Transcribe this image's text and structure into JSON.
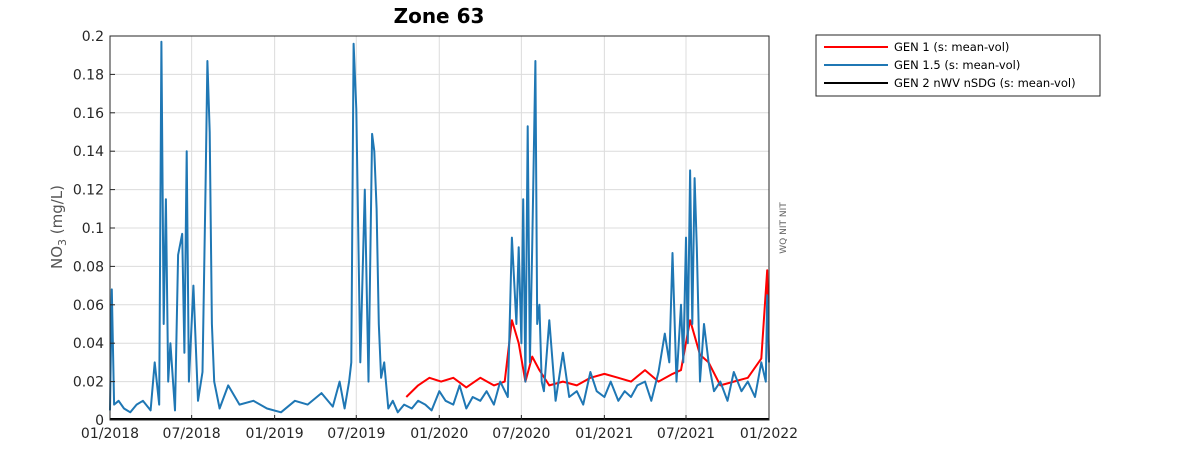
{
  "chart_data": {
    "type": "line",
    "title": "Zone 63",
    "ylabel": "NO3 (mg/L)",
    "ylabel_main": "NO",
    "ylabel_sub": "3",
    "ylabel_unit": " (mg/L)",
    "xlabel": "",
    "side_note": "WQ NIT NIT",
    "ylim": [
      0,
      0.2
    ],
    "xlim": [
      "2018-01-01",
      "2022-01-01"
    ],
    "y_ticks": [
      "0",
      "0.02",
      "0.04",
      "0.06",
      "0.08",
      "0.1",
      "0.12",
      "0.14",
      "0.16",
      "0.18",
      "0.2"
    ],
    "y_tick_values": [
      0,
      0.02,
      0.04,
      0.06,
      0.08,
      0.1,
      0.12,
      0.14,
      0.16,
      0.18,
      0.2
    ],
    "x_ticks": [
      "01/2018",
      "07/2018",
      "01/2019",
      "07/2019",
      "01/2020",
      "07/2020",
      "01/2021",
      "07/2021",
      "01/2022"
    ],
    "x_tick_dates": [
      "2018-01-01",
      "2018-07-01",
      "2019-01-01",
      "2019-07-01",
      "2020-01-01",
      "2020-07-01",
      "2021-01-01",
      "2021-07-01",
      "2022-01-01"
    ],
    "grid": true,
    "legend_position": "outside-top-right",
    "series": [
      {
        "name": "GEN 1 (s: mean-vol)",
        "color": "#ff0000",
        "x": [
          "2019-10-20",
          "2019-11-15",
          "2019-12-10",
          "2020-01-05",
          "2020-02-01",
          "2020-03-01",
          "2020-04-01",
          "2020-05-01",
          "2020-05-25",
          "2020-06-10",
          "2020-06-25",
          "2020-07-10",
          "2020-07-25",
          "2020-08-10",
          "2020-09-01",
          "2020-10-01",
          "2020-11-01",
          "2020-12-01",
          "2021-01-01",
          "2021-02-01",
          "2021-03-01",
          "2021-04-01",
          "2021-05-01",
          "2021-06-01",
          "2021-06-20",
          "2021-07-10",
          "2021-08-01",
          "2021-08-20",
          "2021-09-15",
          "2021-10-15",
          "2021-11-15",
          "2021-12-15",
          "2021-12-28",
          "2022-01-01"
        ],
        "values": [
          0.012,
          0.018,
          0.022,
          0.02,
          0.022,
          0.017,
          0.022,
          0.018,
          0.02,
          0.052,
          0.04,
          0.02,
          0.033,
          0.026,
          0.018,
          0.02,
          0.018,
          0.022,
          0.024,
          0.022,
          0.02,
          0.026,
          0.02,
          0.024,
          0.026,
          0.052,
          0.034,
          0.03,
          0.018,
          0.02,
          0.022,
          0.032,
          0.078,
          0.03
        ]
      },
      {
        "name": "GEN 1.5 (s: mean-vol)",
        "color": "#1f77b4",
        "x": [
          "2018-01-01",
          "2018-01-05",
          "2018-01-10",
          "2018-01-20",
          "2018-02-01",
          "2018-02-15",
          "2018-03-01",
          "2018-03-15",
          "2018-04-01",
          "2018-04-10",
          "2018-04-20",
          "2018-04-25",
          "2018-04-30",
          "2018-05-05",
          "2018-05-10",
          "2018-05-15",
          "2018-05-25",
          "2018-06-01",
          "2018-06-10",
          "2018-06-15",
          "2018-06-20",
          "2018-06-25",
          "2018-07-05",
          "2018-07-15",
          "2018-07-25",
          "2018-08-01",
          "2018-08-05",
          "2018-08-10",
          "2018-08-15",
          "2018-08-20",
          "2018-09-01",
          "2018-09-20",
          "2018-10-15",
          "2018-11-15",
          "2018-12-15",
          "2019-01-15",
          "2019-02-15",
          "2019-03-15",
          "2019-04-15",
          "2019-05-10",
          "2019-05-25",
          "2019-06-05",
          "2019-06-15",
          "2019-06-20",
          "2019-06-25",
          "2019-07-01",
          "2019-07-10",
          "2019-07-20",
          "2019-07-28",
          "2019-08-05",
          "2019-08-10",
          "2019-08-15",
          "2019-08-20",
          "2019-08-25",
          "2019-09-01",
          "2019-09-10",
          "2019-09-20",
          "2019-10-01",
          "2019-10-15",
          "2019-11-01",
          "2019-11-15",
          "2019-12-01",
          "2019-12-15",
          "2020-01-01",
          "2020-01-15",
          "2020-02-01",
          "2020-02-15",
          "2020-03-01",
          "2020-03-15",
          "2020-04-01",
          "2020-04-15",
          "2020-05-01",
          "2020-05-15",
          "2020-06-01",
          "2020-06-10",
          "2020-06-20",
          "2020-06-25",
          "2020-07-01",
          "2020-07-05",
          "2020-07-10",
          "2020-07-15",
          "2020-07-20",
          "2020-07-25",
          "2020-08-01",
          "2020-08-05",
          "2020-08-10",
          "2020-08-15",
          "2020-08-20",
          "2020-09-01",
          "2020-09-15",
          "2020-10-01",
          "2020-10-15",
          "2020-11-01",
          "2020-11-15",
          "2020-12-01",
          "2020-12-15",
          "2021-01-01",
          "2021-01-15",
          "2021-02-01",
          "2021-02-15",
          "2021-03-01",
          "2021-03-15",
          "2021-04-01",
          "2021-04-15",
          "2021-05-01",
          "2021-05-15",
          "2021-05-25",
          "2021-06-01",
          "2021-06-10",
          "2021-06-20",
          "2021-06-25",
          "2021-07-01",
          "2021-07-05",
          "2021-07-10",
          "2021-07-15",
          "2021-07-20",
          "2021-07-25",
          "2021-08-01",
          "2021-08-10",
          "2021-08-20",
          "2021-09-01",
          "2021-09-15",
          "2021-10-01",
          "2021-10-15",
          "2021-11-01",
          "2021-11-15",
          "2021-12-01",
          "2021-12-15",
          "2021-12-25",
          "2021-12-28",
          "2022-01-01"
        ],
        "values": [
          0.005,
          0.068,
          0.008,
          0.01,
          0.006,
          0.004,
          0.008,
          0.01,
          0.005,
          0.03,
          0.008,
          0.197,
          0.05,
          0.115,
          0.02,
          0.04,
          0.005,
          0.086,
          0.097,
          0.035,
          0.14,
          0.02,
          0.07,
          0.01,
          0.025,
          0.123,
          0.187,
          0.15,
          0.05,
          0.02,
          0.006,
          0.018,
          0.008,
          0.01,
          0.006,
          0.004,
          0.01,
          0.008,
          0.014,
          0.007,
          0.02,
          0.006,
          0.02,
          0.03,
          0.196,
          0.162,
          0.03,
          0.12,
          0.02,
          0.149,
          0.14,
          0.11,
          0.05,
          0.022,
          0.03,
          0.006,
          0.01,
          0.004,
          0.008,
          0.006,
          0.01,
          0.008,
          0.005,
          0.015,
          0.01,
          0.008,
          0.018,
          0.006,
          0.012,
          0.01,
          0.015,
          0.008,
          0.02,
          0.012,
          0.095,
          0.05,
          0.09,
          0.04,
          0.115,
          0.02,
          0.153,
          0.03,
          0.09,
          0.187,
          0.05,
          0.06,
          0.02,
          0.015,
          0.052,
          0.01,
          0.035,
          0.012,
          0.015,
          0.008,
          0.025,
          0.015,
          0.012,
          0.02,
          0.01,
          0.015,
          0.012,
          0.018,
          0.02,
          0.01,
          0.025,
          0.045,
          0.03,
          0.087,
          0.02,
          0.06,
          0.03,
          0.095,
          0.04,
          0.13,
          0.05,
          0.126,
          0.09,
          0.02,
          0.05,
          0.03,
          0.015,
          0.02,
          0.01,
          0.025,
          0.015,
          0.02,
          0.012,
          0.03,
          0.02,
          0.065,
          0.03
        ]
      },
      {
        "name": "GEN 2 nWV nSDG (s: mean-vol)",
        "color": "#000000",
        "x": [
          "2018-01-01",
          "2022-01-01"
        ],
        "values": [
          0.0005,
          0.0005
        ]
      }
    ]
  }
}
